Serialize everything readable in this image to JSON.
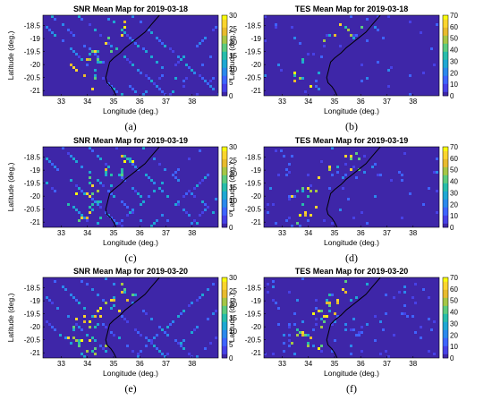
{
  "figure": {
    "panels": [
      {
        "label": "(a)",
        "metric": "SNR",
        "title": "SNR Mean Map for 2019-03-18",
        "date": "2019-03-18"
      },
      {
        "label": "(b)",
        "metric": "TES",
        "title": "TES Mean Map for 2019-03-18",
        "date": "2019-03-18"
      },
      {
        "label": "(c)",
        "metric": "SNR",
        "title": "SNR Mean Map for 2019-03-19",
        "date": "2019-03-19"
      },
      {
        "label": "(d)",
        "metric": "TES",
        "title": "TES Mean Map for 2019-03-19",
        "date": "2019-03-19"
      },
      {
        "label": "(e)",
        "metric": "SNR",
        "title": "SNR Mean Map for 2019-03-20",
        "date": "2019-03-20"
      },
      {
        "label": "(f)",
        "metric": "TES",
        "title": "TES Mean Map for 2019-03-20",
        "date": "2019-03-20"
      }
    ]
  },
  "chart_data": [
    {
      "type": "heatmap",
      "title": "SNR Mean Map for 2019-03-18",
      "xlabel": "Longitude (deg.)",
      "ylabel": "Latitude (deg.)",
      "xticks": [
        "33",
        "34",
        "35",
        "36",
        "37",
        "38"
      ],
      "yticks": [
        "-18.5",
        "-19",
        "-19.5",
        "-20",
        "-20.5",
        "-21"
      ],
      "xlim": [
        32.3,
        39.0
      ],
      "ylim": [
        -21.2,
        -18.1
      ],
      "colorbar": {
        "ticks": [
          "0",
          "5",
          "10",
          "15",
          "20",
          "25",
          "30"
        ],
        "range": [
          0,
          30
        ],
        "colormap": "parula"
      }
    },
    {
      "type": "heatmap",
      "title": "TES Mean Map for 2019-03-18",
      "xlabel": "Longitude (deg.)",
      "ylabel": "Latitude (deg.)",
      "xticks": [
        "33",
        "34",
        "35",
        "36",
        "37",
        "38"
      ],
      "yticks": [
        "-18.5",
        "-19",
        "-19.5",
        "-20",
        "-20.5",
        "-21"
      ],
      "xlim": [
        32.3,
        39.0
      ],
      "ylim": [
        -21.2,
        -18.1
      ],
      "colorbar": {
        "ticks": [
          "0",
          "10",
          "20",
          "30",
          "40",
          "50",
          "60",
          "70"
        ],
        "range": [
          0,
          70
        ],
        "colormap": "parula"
      }
    },
    {
      "type": "heatmap",
      "title": "SNR Mean Map for 2019-03-19",
      "xlabel": "Longitude (deg.)",
      "ylabel": "Latitude (deg.)",
      "xticks": [
        "33",
        "34",
        "35",
        "36",
        "37",
        "38"
      ],
      "yticks": [
        "-18.5",
        "-19",
        "-19.5",
        "-20",
        "-20.5",
        "-21"
      ],
      "xlim": [
        32.3,
        39.0
      ],
      "ylim": [
        -21.2,
        -18.1
      ],
      "colorbar": {
        "ticks": [
          "0",
          "5",
          "10",
          "15",
          "20",
          "25",
          "30"
        ],
        "range": [
          0,
          30
        ],
        "colormap": "parula"
      }
    },
    {
      "type": "heatmap",
      "title": "TES Mean Map for 2019-03-19",
      "xlabel": "Longitude (deg.)",
      "ylabel": "Latitude (deg.)",
      "xticks": [
        "33",
        "34",
        "35",
        "36",
        "37",
        "38"
      ],
      "yticks": [
        "-18.5",
        "-19",
        "-19.5",
        "-20",
        "-20.5",
        "-21"
      ],
      "xlim": [
        32.3,
        39.0
      ],
      "ylim": [
        -21.2,
        -18.1
      ],
      "colorbar": {
        "ticks": [
          "0",
          "10",
          "20",
          "30",
          "40",
          "50",
          "60",
          "70"
        ],
        "range": [
          0,
          70
        ],
        "colormap": "parula"
      }
    },
    {
      "type": "heatmap",
      "title": "SNR Mean Map for 2019-03-20",
      "xlabel": "Longitude (deg.)",
      "ylabel": "Latitude (deg.)",
      "xticks": [
        "33",
        "34",
        "35",
        "36",
        "37",
        "38"
      ],
      "yticks": [
        "-18.5",
        "-19",
        "-19.5",
        "-20",
        "-20.5",
        "-21"
      ],
      "xlim": [
        32.3,
        39.0
      ],
      "ylim": [
        -21.2,
        -18.1
      ],
      "colorbar": {
        "ticks": [
          "0",
          "5",
          "10",
          "15",
          "20",
          "25",
          "30"
        ],
        "range": [
          0,
          30
        ],
        "colormap": "parula"
      }
    },
    {
      "type": "heatmap",
      "title": "TES Mean Map for 2019-03-20",
      "xlabel": "Longitude (deg.)",
      "ylabel": "Latitude (deg.)",
      "xticks": [
        "33",
        "34",
        "35",
        "36",
        "37",
        "38"
      ],
      "yticks": [
        "-18.5",
        "-19",
        "-19.5",
        "-20",
        "-20.5",
        "-21"
      ],
      "xlim": [
        32.3,
        39.0
      ],
      "ylim": [
        -21.2,
        -18.1
      ],
      "colorbar": {
        "ticks": [
          "0",
          "10",
          "20",
          "30",
          "40",
          "50",
          "60",
          "70"
        ],
        "range": [
          0,
          70
        ],
        "colormap": "parula"
      }
    }
  ],
  "colors": {
    "background": "#3e26a8",
    "parula": [
      "#3e26a8",
      "#4741e6",
      "#3e64fd",
      "#2b88ec",
      "#1ea7d3",
      "#27bdab",
      "#5ccb7f",
      "#a5c646",
      "#e8bb2e",
      "#fad52e",
      "#f9fb0e"
    ],
    "coastline": "#000000"
  },
  "coastline": [
    [
      36.75,
      -18.1
    ],
    [
      36.45,
      -18.45
    ],
    [
      36.2,
      -18.75
    ],
    [
      35.95,
      -18.95
    ],
    [
      35.7,
      -19.15
    ],
    [
      35.45,
      -19.35
    ],
    [
      35.25,
      -19.55
    ],
    [
      35.0,
      -19.75
    ],
    [
      34.85,
      -19.9
    ],
    [
      34.8,
      -20.1
    ],
    [
      34.75,
      -20.3
    ],
    [
      34.7,
      -20.5
    ],
    [
      34.75,
      -20.7
    ],
    [
      34.9,
      -20.85
    ],
    [
      35.0,
      -21.0
    ],
    [
      35.1,
      -21.2
    ]
  ]
}
